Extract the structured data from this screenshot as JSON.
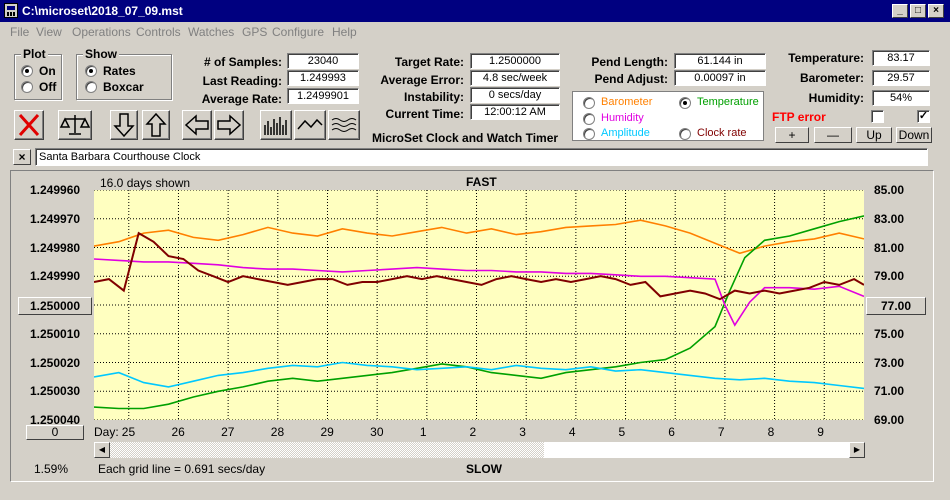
{
  "window": {
    "title": "C:\\microset\\2018_07_09.mst"
  },
  "menu": [
    "File",
    "View",
    "Operations",
    "Controls",
    "Watches",
    "GPS",
    "Configure",
    "Help"
  ],
  "plot": {
    "title": "Plot",
    "on": "On",
    "off": "Off"
  },
  "show": {
    "title": "Show",
    "rates": "Rates",
    "boxcar": "Boxcar"
  },
  "stats": {
    "samples_label": "# of Samples:",
    "samples": "23040",
    "last_reading_label": "Last Reading:",
    "last_reading": "1.249993",
    "average_rate_label": "Average Rate:",
    "average_rate": "1.2499901",
    "target_rate_label": "Target Rate:",
    "target_rate": "1.2500000",
    "average_error_label": "Average Error:",
    "average_error": "4.8 sec/week",
    "instability_label": "Instability:",
    "instability": "0 secs/day",
    "current_time_label": "Current Time:",
    "current_time": "12:00:12 AM",
    "pend_length_label": "Pend Length:",
    "pend_length": "61.144 in",
    "pend_adjust_label": "Pend Adjust:",
    "pend_adjust": "0.00097 in",
    "temperature_label": "Temperature:",
    "temperature": "83.17",
    "barometer_label": "Barometer:",
    "barometer": "29.57",
    "humidity_label": "Humidity:",
    "humidity": "54%"
  },
  "app_caption": "MicroSet Clock and Watch Timer",
  "channels": {
    "barometer": "Barometer",
    "temperature": "Temperature",
    "humidity": "Humidity",
    "amplitude": "Amplitude",
    "clock_rate": "Clock rate"
  },
  "colors": {
    "barometer": "#ff8000",
    "temperature": "#00a000",
    "humidity": "#e000e0",
    "amplitude": "#00c8ff",
    "rate": "#800000",
    "ftp_error": "#ff0000"
  },
  "ftp_error": "FTP error",
  "buttons": {
    "plus": "+",
    "minus": "—",
    "up": "Up",
    "down": "Down",
    "close": "×"
  },
  "clock_name": "Santa Barbara Courthouse Clock",
  "chart_labels": {
    "days_shown": "16.0 days shown",
    "fast": "FAST",
    "slow": "SLOW",
    "day": "Day:",
    "grid_note": "Each grid line = 0.691 secs/day",
    "percent": "1.59%",
    "center_left": "1.250000",
    "center_right": "77.00",
    "bottom_btn": "0"
  },
  "chart_data": {
    "type": "line",
    "x_label": "Day:",
    "x_ticks": [
      "25",
      "26",
      "27",
      "28",
      "29",
      "30",
      "1",
      "2",
      "3",
      "4",
      "5",
      "6",
      "7",
      "8",
      "9"
    ],
    "y_left_ticks": [
      "1.249960",
      "1.249970",
      "1.249980",
      "1.249990",
      "1.250000",
      "1.250010",
      "1.250020",
      "1.250030",
      "1.250040"
    ],
    "y_right_ticks": [
      "85.00",
      "83.00",
      "81.00",
      "79.00",
      "77.00",
      "75.00",
      "73.00",
      "71.00",
      "69.00"
    ],
    "y_left_range": [
      1.24996,
      1.25004
    ],
    "y_right_range": [
      69,
      85
    ],
    "x_range": [
      24.3,
      39.8
    ],
    "series": [
      {
        "name": "Barometer",
        "color": "#ff8000",
        "axis": "right",
        "x": [
          24.3,
          24.8,
          25.3,
          25.8,
          26.3,
          26.8,
          27.3,
          27.8,
          28.3,
          28.8,
          29.3,
          29.8,
          30.3,
          30.8,
          31.3,
          31.8,
          32.3,
          32.8,
          33.3,
          33.8,
          34.3,
          34.8,
          35.3,
          35.8,
          36.3,
          36.8,
          37.3,
          37.8,
          38.3,
          38.8,
          39.3,
          39.8
        ],
        "y": [
          81.1,
          81.4,
          82.0,
          82.2,
          81.7,
          81.5,
          81.9,
          82.4,
          82.0,
          81.8,
          82.3,
          82.0,
          81.8,
          82.1,
          82.4,
          82.0,
          82.3,
          81.9,
          82.1,
          82.4,
          82.5,
          82.6,
          82.9,
          82.5,
          82.0,
          81.3,
          80.6,
          81.1,
          81.4,
          81.6,
          82.0,
          81.6
        ]
      },
      {
        "name": "Temperature",
        "color": "#00a000",
        "axis": "right",
        "x": [
          24.3,
          24.8,
          25.3,
          25.8,
          26.3,
          26.8,
          27.3,
          27.8,
          28.3,
          28.8,
          29.3,
          29.8,
          30.3,
          30.8,
          31.3,
          31.8,
          32.3,
          32.8,
          33.3,
          33.8,
          34.3,
          34.8,
          35.3,
          35.8,
          36.3,
          36.8,
          37.1,
          37.4,
          37.8,
          38.3,
          38.8,
          39.3,
          39.8
        ],
        "y": [
          69.9,
          69.8,
          69.8,
          70.1,
          70.6,
          71.0,
          71.3,
          71.7,
          71.9,
          71.7,
          71.9,
          72.1,
          72.3,
          72.6,
          72.9,
          72.7,
          72.3,
          72.1,
          71.9,
          72.3,
          72.5,
          72.7,
          73.0,
          73.2,
          74.0,
          75.5,
          78.0,
          80.3,
          81.5,
          81.8,
          82.3,
          82.8,
          83.2
        ]
      },
      {
        "name": "Humidity",
        "color": "#e000e0",
        "axis": "right",
        "x": [
          24.3,
          24.8,
          25.3,
          25.8,
          26.3,
          26.8,
          27.3,
          27.8,
          28.3,
          28.8,
          29.3,
          29.8,
          30.3,
          30.8,
          31.3,
          31.8,
          32.3,
          32.8,
          33.3,
          33.8,
          34.3,
          34.8,
          35.3,
          35.8,
          36.3,
          36.8,
          37.0,
          37.2,
          37.5,
          37.8,
          38.3,
          38.8,
          39.3,
          39.8
        ],
        "y": [
          80.2,
          80.1,
          80.0,
          80.0,
          79.9,
          79.8,
          79.6,
          79.5,
          79.5,
          79.4,
          79.3,
          79.4,
          79.5,
          79.6,
          79.5,
          79.4,
          79.4,
          79.3,
          79.3,
          79.2,
          79.2,
          79.1,
          79.0,
          79.0,
          78.9,
          78.8,
          77.0,
          75.6,
          77.2,
          78.2,
          78.2,
          78.1,
          78.3,
          77.6
        ]
      },
      {
        "name": "Amplitude",
        "color": "#00c8ff",
        "axis": "right",
        "x": [
          24.3,
          24.8,
          25.3,
          25.8,
          26.3,
          26.8,
          27.3,
          27.8,
          28.3,
          28.8,
          29.3,
          29.8,
          30.3,
          30.8,
          31.3,
          31.8,
          32.3,
          32.8,
          33.3,
          33.8,
          34.3,
          34.8,
          35.3,
          35.8,
          36.3,
          36.8,
          37.3,
          37.8,
          38.3,
          38.8,
          39.3,
          39.8
        ],
        "y": [
          72.0,
          72.3,
          71.6,
          71.3,
          71.7,
          72.1,
          72.3,
          72.6,
          72.8,
          72.7,
          73.0,
          72.8,
          72.7,
          72.5,
          72.6,
          72.7,
          72.5,
          72.8,
          72.6,
          72.5,
          72.7,
          72.4,
          72.5,
          72.3,
          72.1,
          71.9,
          71.8,
          71.9,
          71.7,
          71.6,
          71.4,
          71.2
        ]
      },
      {
        "name": "Clock rate",
        "color": "#800000",
        "axis": "left",
        "x": [
          24.3,
          24.6,
          24.9,
          25.2,
          25.5,
          25.8,
          26.1,
          26.4,
          26.7,
          27.0,
          27.3,
          27.6,
          27.9,
          28.2,
          28.5,
          28.8,
          29.1,
          29.4,
          29.7,
          30.0,
          30.3,
          30.6,
          30.9,
          31.2,
          31.5,
          31.8,
          32.1,
          32.4,
          32.7,
          33.0,
          33.3,
          33.6,
          33.9,
          34.2,
          34.5,
          34.8,
          35.1,
          35.4,
          35.7,
          36.0,
          36.3,
          36.6,
          36.9,
          37.2,
          37.5,
          37.8,
          38.1,
          38.4,
          38.7,
          39.0,
          39.3,
          39.6,
          39.8
        ],
        "y": [
          1.249992,
          1.249991,
          1.249995,
          1.249975,
          1.249978,
          1.249983,
          1.249984,
          1.249988,
          1.24999,
          1.249992,
          1.24999,
          1.249991,
          1.249992,
          1.249993,
          1.249992,
          1.249991,
          1.249991,
          1.249993,
          1.249992,
          1.249992,
          1.249991,
          1.24999,
          1.249991,
          1.24999,
          1.249991,
          1.249992,
          1.249993,
          1.249991,
          1.24999,
          1.249991,
          1.249992,
          1.249991,
          1.249992,
          1.249991,
          1.24999,
          1.249991,
          1.249993,
          1.249992,
          1.249997,
          1.249996,
          1.249995,
          1.249996,
          1.249998,
          1.249995,
          1.249996,
          1.249995,
          1.249996,
          1.249995,
          1.249994,
          1.249992,
          1.249993,
          1.249991,
          1.249993
        ]
      }
    ]
  }
}
